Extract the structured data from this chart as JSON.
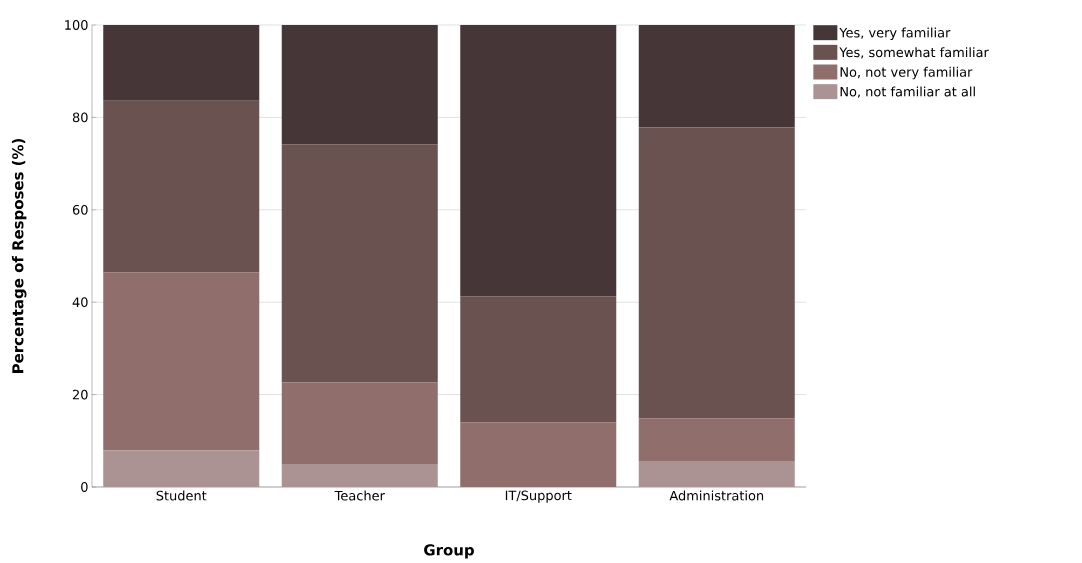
{
  "chart_data": {
    "type": "bar",
    "stacked": true,
    "xlabel": "Group",
    "ylabel": "Percentage of Resposes (%)",
    "categories": [
      "Student",
      "Teacher",
      "IT/Support",
      "Administration"
    ],
    "series": [
      {
        "name": "No, not familiar at all",
        "color": "#ab9393",
        "values": [
          7.9,
          4.8,
          0,
          5.6
        ]
      },
      {
        "name": "No, not very familiar",
        "color": "#8f6e6c",
        "values": [
          38.6,
          17.8,
          14.0,
          9.3
        ]
      },
      {
        "name": "Yes, somewhat familiar",
        "color": "#6a5251",
        "values": [
          37.1,
          51.6,
          27.3,
          62.9
        ]
      },
      {
        "name": "Yes, very familiar",
        "color": "#463637",
        "values": [
          16.4,
          25.8,
          58.7,
          22.2
        ]
      }
    ],
    "ylim": [
      0,
      100
    ],
    "yticks": [
      0,
      20,
      40,
      60,
      80,
      100
    ],
    "grid": "y",
    "legend": "top right"
  }
}
